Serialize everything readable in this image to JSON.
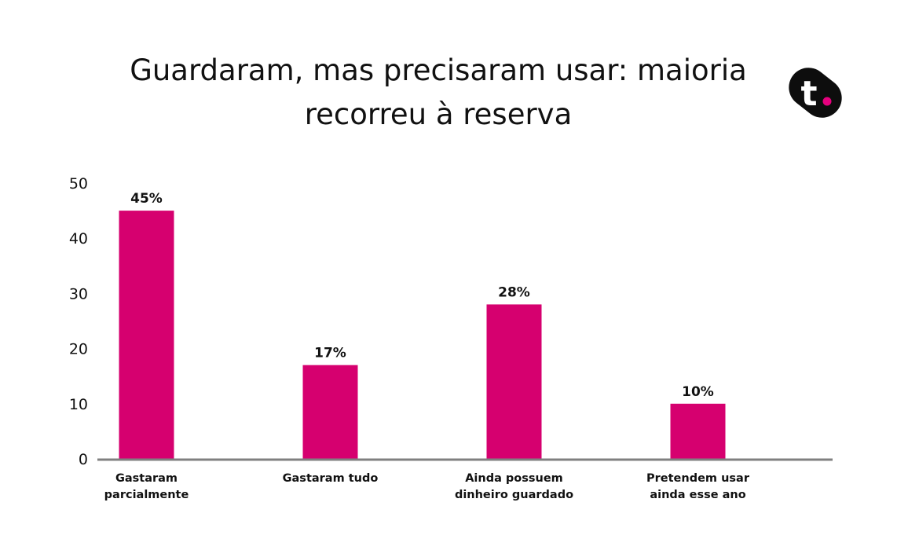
{
  "title": "Guardaram, mas precisaram usar: maioria recorreu à reserva",
  "logo": {
    "icon": "brand-t-logo-icon",
    "text": "t"
  },
  "colors": {
    "bar": "#d6006f",
    "axis": "#808080",
    "text": "#111111",
    "accent_dot": "#e6007e"
  },
  "chart_data": {
    "type": "bar",
    "title": "Guardaram, mas precisaram usar: maioria recorreu à reserva",
    "xlabel": "",
    "ylabel": "",
    "categories": [
      [
        "Gastaram",
        "parcialmente"
      ],
      [
        "Gastaram tudo"
      ],
      [
        "Ainda possuem",
        "dinheiro guardado"
      ],
      [
        "Pretendem usar",
        "ainda esse ano"
      ]
    ],
    "values": [
      45,
      17,
      28,
      10
    ],
    "data_labels": [
      "45%",
      "17%",
      "28%",
      "10%"
    ],
    "ylim": [
      0,
      50
    ],
    "yticks": [
      0,
      10,
      20,
      30,
      40,
      50
    ],
    "grid": false,
    "legend": "none"
  }
}
